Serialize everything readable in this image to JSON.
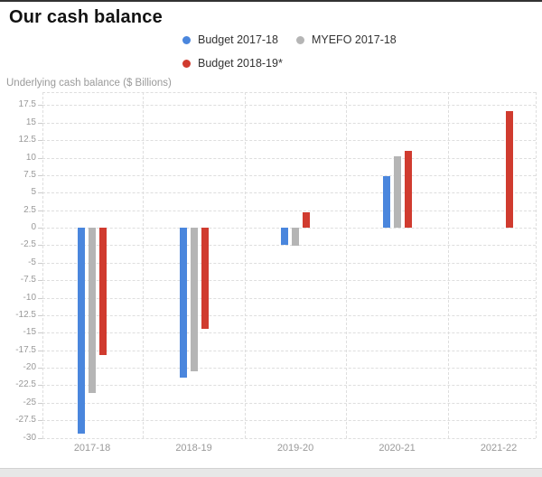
{
  "chart_data": {
    "type": "bar",
    "title": "Our cash balance",
    "ylabel": "Underlying cash balance ($ Billions)",
    "xlabel": "",
    "categories": [
      "2017-18",
      "2018-19",
      "2019-20",
      "2020-21",
      "2021-22"
    ],
    "series": [
      {
        "name": "Budget 2017-18",
        "color": "#4a86dd",
        "values": [
          -29.4,
          -21.4,
          -2.5,
          7.4,
          null
        ]
      },
      {
        "name": "MYEFO 2017-18",
        "color": "#b5b5b5",
        "values": [
          -23.6,
          -20.5,
          -2.6,
          10.2,
          null
        ]
      },
      {
        "name": "Budget 2018-19*",
        "color": "#d03b2f",
        "values": [
          -18.2,
          -14.5,
          2.2,
          11.0,
          16.6
        ]
      }
    ],
    "ylim": [
      -30,
      17.5
    ],
    "ytick_step": 2.5,
    "yticks": [
      17.5,
      15,
      12.5,
      10,
      7.5,
      5,
      2.5,
      0,
      -2.5,
      -5,
      -7.5,
      -10,
      -12.5,
      -15,
      -17.5,
      -20,
      -22.5,
      -25,
      -27.5,
      -30
    ],
    "grid": true,
    "gridline_style": "dashed",
    "legend_position": "top"
  },
  "colors": {
    "title_text": "#121212",
    "legend_text": "#333333",
    "axis_text": "#999999",
    "gridline": "#dedede",
    "top_border": "#323232",
    "bottom_strip": "#e7e7e7"
  }
}
